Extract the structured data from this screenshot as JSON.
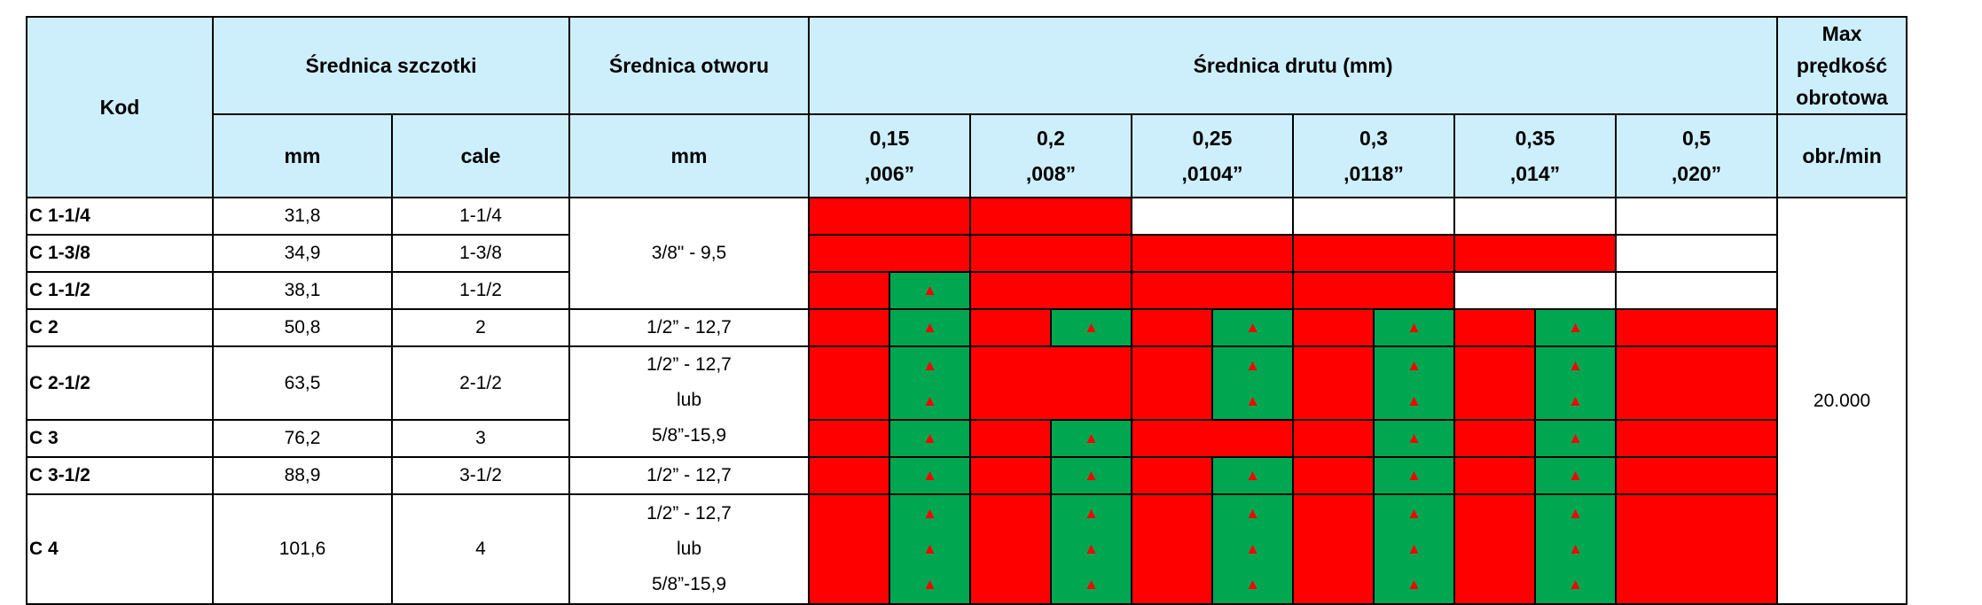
{
  "header": {
    "kod": "Kod",
    "brush_diameter": "Średnica szczotki",
    "hole_diameter": "Średnica otworu",
    "wire_diameter": "Średnica drutu (mm)",
    "max_speed": "Max prędkość obrotowa",
    "mm": "mm",
    "cale": "cale",
    "hole_mm": "mm",
    "speed_unit": "obr./min",
    "wire_sizes": [
      {
        "mm": "0,15",
        "inch": ",006”"
      },
      {
        "mm": "0,2",
        "inch": ",008”"
      },
      {
        "mm": "0,25",
        "inch": ",0104”"
      },
      {
        "mm": "0,3",
        "inch": ",0118”"
      },
      {
        "mm": "0,35",
        "inch": ",014”"
      },
      {
        "mm": "0,5",
        "inch": ",020”"
      }
    ]
  },
  "rows": [
    {
      "kod": "C 1-1/4",
      "mm": "31,8",
      "cale": "1-1/4"
    },
    {
      "kod": "C 1-3/8",
      "mm": "34,9",
      "cale": "1-3/8"
    },
    {
      "kod": "C 1-1/2",
      "mm": "38,1",
      "cale": "1-1/2"
    },
    {
      "kod": "C 2",
      "mm": "50,8",
      "cale": "2"
    },
    {
      "kod": "C 2-1/2",
      "mm": "63,5",
      "cale": "2-1/2"
    },
    {
      "kod": "C 3",
      "mm": "76,2",
      "cale": "3"
    },
    {
      "kod": "C 3-1/2",
      "mm": "88,9",
      "cale": "3-1/2"
    },
    {
      "kod": "C 4",
      "mm": "101,6",
      "cale": "4"
    }
  ],
  "holes": {
    "h1": "3/8\" - 9,5",
    "h2": "1/2” - 12,7",
    "h3a": "1/2” - 12,7",
    "h3b": "lub",
    "h3c": "5/8”-15,9",
    "h4": "1/2” - 12,7",
    "h5a": "1/2” - 12,7",
    "h5b": "lub",
    "h5c": "5/8”-15,9"
  },
  "speed_value": "20.000",
  "mark_glyph": "▲",
  "colors": {
    "red": "#ff0000",
    "green": "#00a650",
    "header_bg": "#cdeffc",
    "white": "#ffffff"
  }
}
